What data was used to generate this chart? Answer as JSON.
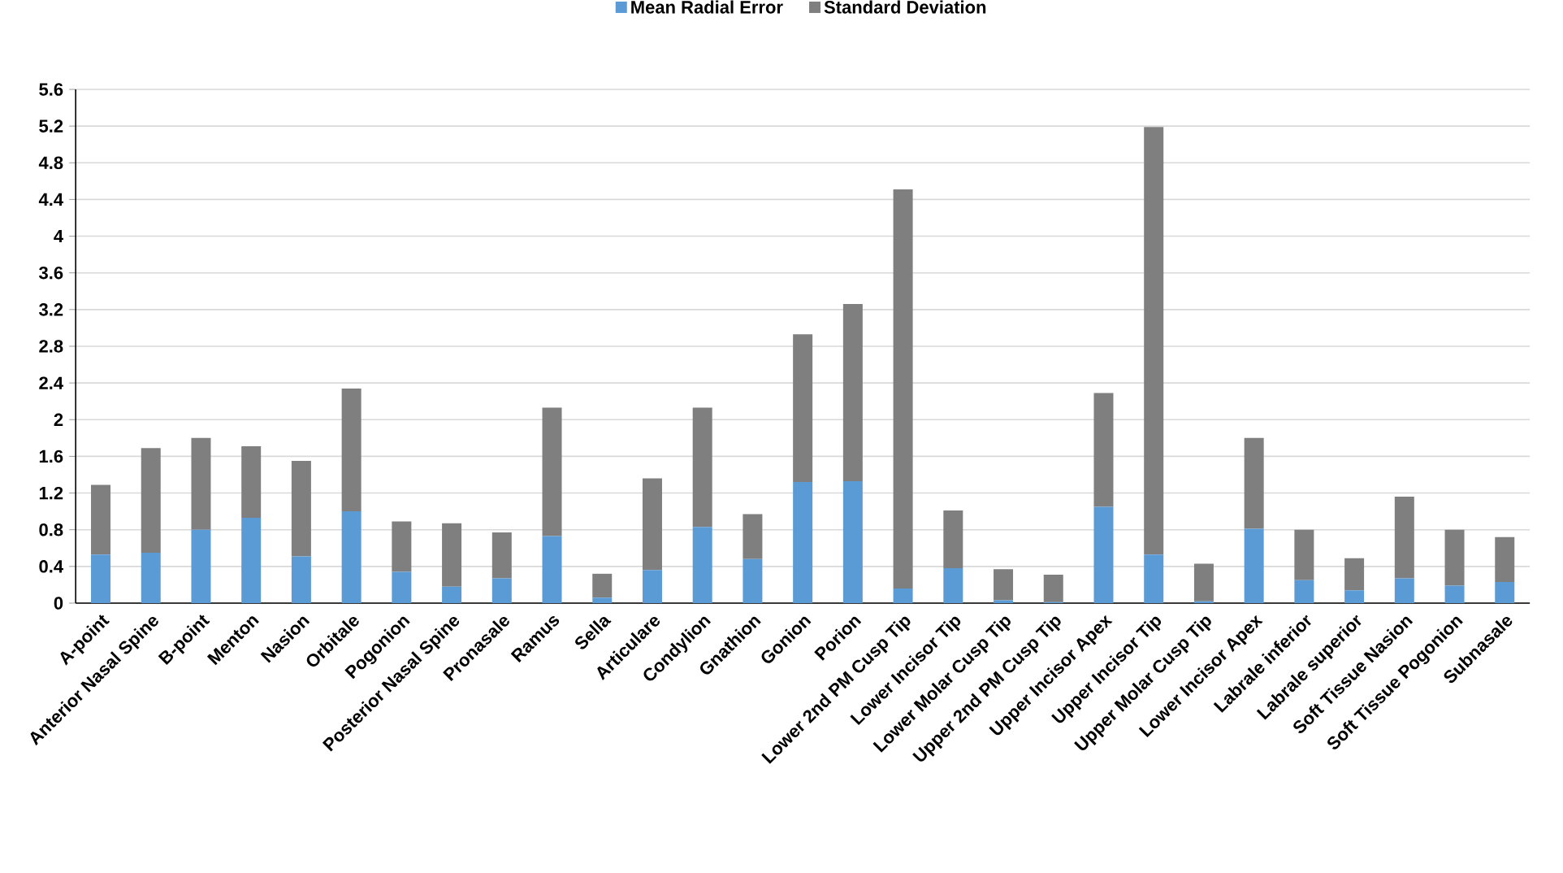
{
  "chart_data": {
    "type": "bar",
    "stacked": true,
    "legend": "top",
    "grid": "y",
    "categories": [
      "A-point",
      "Anterior Nasal Spine",
      "B-point",
      "Menton",
      "Nasion",
      "Orbitale",
      "Pogonion",
      "Posterior Nasal Spine",
      "Pronasale",
      "Ramus",
      "Sella",
      "Articulare",
      "Condylion",
      "Gnathion",
      "Gonion",
      "Porion",
      "Lower 2nd PM Cusp Tip",
      "Lower Incisor Tip",
      "Lower Molar Cusp Tip",
      "Upper 2nd PM Cusp Tip",
      "Upper Incisor Apex",
      "Upper Incisor Tip",
      "Upper Molar Cusp Tip",
      "Lower Incisor Apex",
      "Labrale inferior",
      "Labrale superior",
      "Soft Tissue Nasion",
      "Soft Tissue Pogonion",
      "Subnasale"
    ],
    "series": [
      {
        "name": "Mean Radial Error",
        "color": "#5b9bd5",
        "values": [
          0.53,
          0.55,
          0.8,
          0.93,
          0.51,
          1.0,
          0.34,
          0.18,
          0.27,
          0.73,
          0.06,
          0.36,
          0.83,
          0.48,
          1.32,
          1.33,
          0.16,
          0.38,
          0.03,
          0.01,
          1.05,
          0.53,
          0.02,
          0.81,
          0.25,
          0.14,
          0.27,
          0.19,
          0.23
        ]
      },
      {
        "name": "Standard Deviation",
        "color": "#7f7f7f",
        "values": [
          0.76,
          1.14,
          1.0,
          0.78,
          1.04,
          1.34,
          0.55,
          0.69,
          0.5,
          1.4,
          0.26,
          1.0,
          1.3,
          0.49,
          1.61,
          1.93,
          4.35,
          0.63,
          0.34,
          0.3,
          1.24,
          4.66,
          0.41,
          0.99,
          0.55,
          0.35,
          0.89,
          0.61,
          0.49
        ]
      }
    ],
    "ylim": [
      0,
      5.6
    ],
    "yticks": [
      0,
      0.4,
      0.8,
      1.2,
      1.6,
      2,
      2.4,
      2.8,
      3.2,
      3.6,
      4,
      4.4,
      4.8,
      5.2,
      5.6
    ]
  }
}
